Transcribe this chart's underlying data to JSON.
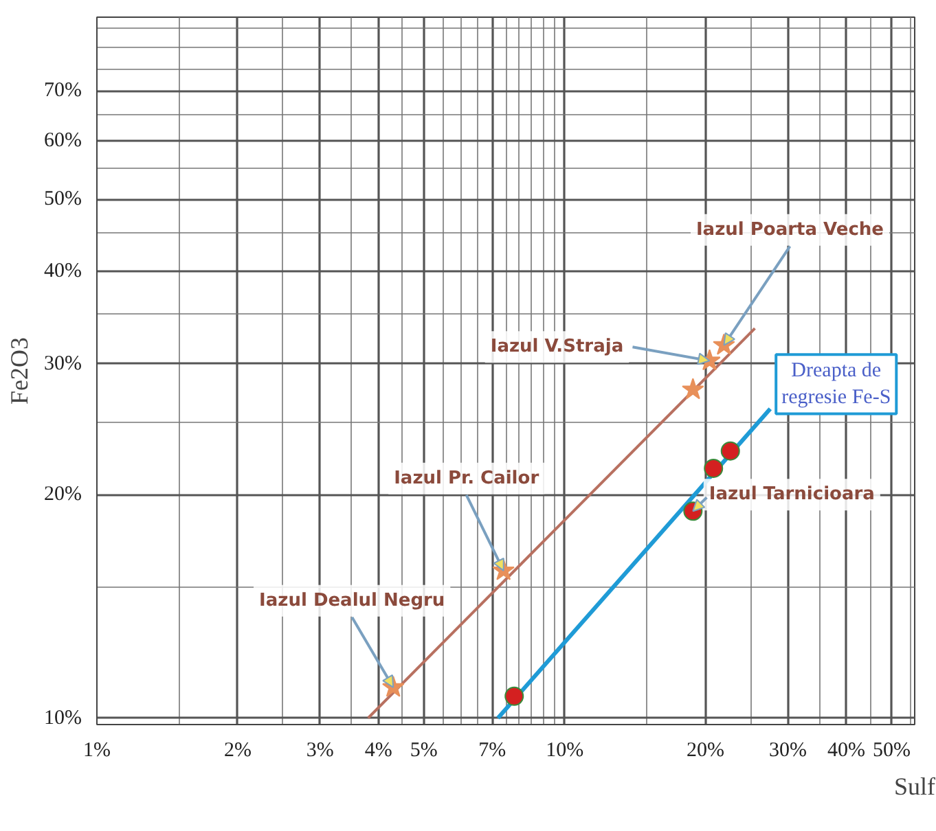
{
  "chart_data": {
    "type": "scatter",
    "xlabel": "Sulf",
    "ylabel": "Fe2O3",
    "log": "xy",
    "grid": true,
    "xlim": [
      1,
      56
    ],
    "ylim": [
      9.8,
      88
    ],
    "xticks": [
      {
        "value": 1,
        "label": "1%"
      },
      {
        "value": 2,
        "label": "2%"
      },
      {
        "value": 3,
        "label": "3%"
      },
      {
        "value": 4,
        "label": "4%"
      },
      {
        "value": 5,
        "label": "5%"
      },
      {
        "value": 7,
        "label": "7%"
      },
      {
        "value": 10,
        "label": "10%"
      },
      {
        "value": 20,
        "label": "20%"
      },
      {
        "value": 30,
        "label": "30%"
      },
      {
        "value": 40,
        "label": "40%"
      },
      {
        "value": 50,
        "label": "50%"
      }
    ],
    "yticks": [
      {
        "value": 10,
        "label": "10%"
      },
      {
        "value": 20,
        "label": "20%"
      },
      {
        "value": 30,
        "label": "30%"
      },
      {
        "value": 40,
        "label": "40%"
      },
      {
        "value": 50,
        "label": "50%"
      },
      {
        "value": 60,
        "label": "60%"
      },
      {
        "value": 70,
        "label": "70%"
      }
    ],
    "series": [
      {
        "type": "line",
        "color": "#b87060",
        "x": [
          3.8,
          25.5
        ],
        "values": [
          10,
          33.5
        ],
        "marker": "none"
      },
      {
        "type": "line",
        "color": "#1f9bd6",
        "x": [
          7.2,
          27.5
        ],
        "values": [
          10,
          26.1
        ],
        "marker": "none"
      },
      {
        "color": "#e8905a",
        "marker": "star",
        "x": [
          4.3,
          7.4,
          18.8,
          20.4,
          21.9
        ],
        "values": [
          11.0,
          15.8,
          27.7,
          30.3,
          31.8
        ]
      },
      {
        "color": "#d42020",
        "marker": "circle",
        "x": [
          7.8,
          18.8,
          20.8,
          22.6
        ],
        "values": [
          10.7,
          19.0,
          21.7,
          22.9
        ]
      }
    ],
    "annotations": [
      {
        "text": "Iazul Poarta Veche",
        "x": 21.9,
        "y": 31.8
      },
      {
        "text": "Iazul V.Straja",
        "x": 20.4,
        "y": 30.3
      },
      {
        "text": "Iazul Pr. Cailor",
        "x": 7.4,
        "y": 15.8
      },
      {
        "text": "Iazul Dealul Negru",
        "x": 4.3,
        "y": 11.0
      },
      {
        "text": "Iazul Tarnicioara",
        "x": 18.8,
        "y": 19.0
      },
      {
        "text": "Dreapta de\nregresie Fe-S",
        "x": 27.5,
        "y": 26.1
      }
    ]
  }
}
